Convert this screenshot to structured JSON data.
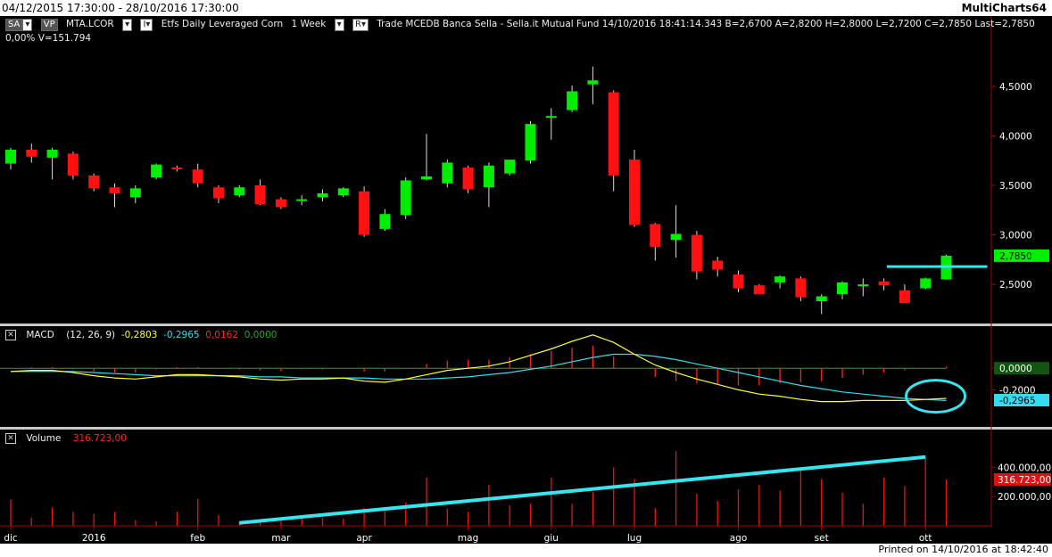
{
  "window": {
    "range_title": "04/12/2015 17:30:00 - 28/10/2016 17:30:00",
    "app_name": "MultiCharts64",
    "printed_on": "Printed on 14/10/2016 at 18:42:40"
  },
  "toolbar": {
    "sa_label": "SA",
    "vp_label": "VP",
    "symbol": "MTA.LCOR",
    "dropdown_glyph": "▾",
    "interval_glyph": "I▾",
    "description": "Etfs Daily Leveraged Corn",
    "interval": "1 Week",
    "r_glyph": "R▾",
    "quote_info": "Trade  MCEDB  Banca Sella - Sella.it  Mutual Fund  14/10/2016  18:41:14.343  B=2,6700  A=2,8200  H=2,8000  L=2,7200  C=2,7850  Last=2,7850",
    "change_volume": "0,00%  V=151.794"
  },
  "macd_panel": {
    "label": "MACD",
    "params": "(12, 26, 9)",
    "macd_value": "-0,2803",
    "signal_value": "-0,2965",
    "hist_value": "0,0162",
    "zero_value": "0,0000",
    "axis_ticks": [
      "0,0000",
      "-0,2000"
    ],
    "last_badge": "-0,2965",
    "colors": {
      "macd": "#ffff33",
      "signal": "#33ddee",
      "hist": "#ff2222",
      "zero": "#22aa22"
    }
  },
  "volume_panel": {
    "label": "Volume",
    "value": "316.723,00",
    "axis_ticks": [
      "400.000,00",
      "200.000,00"
    ],
    "last_badge": "316.723,00"
  },
  "price_panel": {
    "axis_ticks": [
      "4,5000",
      "4,0000",
      "3,5000",
      "3,0000",
      "2,5000"
    ],
    "last_badge": "2,7850"
  },
  "x_axis": {
    "labels": [
      "dic",
      "2016",
      "feb",
      "mar",
      "apr",
      "mag",
      "giu",
      "lug",
      "ago",
      "set",
      "ott"
    ]
  },
  "colors": {
    "background": "#000000",
    "up": "#00ee00",
    "down": "#ff1111",
    "annotation": "#33e6f0",
    "axis_text": "#ffffff"
  },
  "chart_data": [
    {
      "type": "candlestick",
      "title": "MTA.LCOR Etfs Daily Leveraged Corn 1 Week",
      "ylim": [
        2.15,
        4.85
      ],
      "series": [
        {
          "name": "MTA.LCOR",
          "ohlc": [
            [
              3.72,
              3.88,
              3.66,
              3.86
            ],
            [
              3.86,
              3.92,
              3.73,
              3.79
            ],
            [
              3.78,
              3.88,
              3.56,
              3.86
            ],
            [
              3.82,
              3.84,
              3.56,
              3.6
            ],
            [
              3.6,
              3.62,
              3.44,
              3.47
            ],
            [
              3.48,
              3.52,
              3.28,
              3.42
            ],
            [
              3.38,
              3.5,
              3.32,
              3.47
            ],
            [
              3.58,
              3.72,
              3.56,
              3.71
            ],
            [
              3.68,
              3.7,
              3.64,
              3.67
            ],
            [
              3.66,
              3.72,
              3.48,
              3.52
            ],
            [
              3.48,
              3.5,
              3.32,
              3.37
            ],
            [
              3.4,
              3.5,
              3.38,
              3.48
            ],
            [
              3.5,
              3.56,
              3.3,
              3.31
            ],
            [
              3.36,
              3.38,
              3.26,
              3.28
            ],
            [
              3.35,
              3.4,
              3.3,
              3.36
            ],
            [
              3.38,
              3.46,
              3.34,
              3.42
            ],
            [
              3.4,
              3.48,
              3.38,
              3.47
            ],
            [
              3.44,
              3.49,
              2.98,
              3.0
            ],
            [
              3.06,
              3.26,
              3.04,
              3.21
            ],
            [
              3.2,
              3.58,
              3.16,
              3.55
            ],
            [
              3.56,
              4.02,
              3.55,
              3.59
            ],
            [
              3.52,
              3.76,
              3.48,
              3.73
            ],
            [
              3.68,
              3.7,
              3.42,
              3.46
            ],
            [
              3.48,
              3.73,
              3.28,
              3.7
            ],
            [
              3.62,
              3.74,
              3.6,
              3.76
            ],
            [
              3.75,
              4.15,
              3.72,
              4.12
            ],
            [
              4.19,
              4.28,
              3.96,
              4.2
            ],
            [
              4.26,
              4.51,
              4.24,
              4.45
            ],
            [
              4.52,
              4.7,
              4.32,
              4.56
            ],
            [
              4.44,
              4.46,
              3.44,
              3.6
            ],
            [
              3.76,
              3.86,
              3.08,
              3.1
            ],
            [
              3.11,
              3.12,
              2.74,
              2.88
            ],
            [
              2.95,
              3.3,
              2.77,
              3.01
            ],
            [
              3.0,
              3.04,
              2.55,
              2.63
            ],
            [
              2.74,
              2.78,
              2.58,
              2.65
            ],
            [
              2.6,
              2.64,
              2.42,
              2.46
            ],
            [
              2.49,
              2.5,
              2.4,
              2.4
            ],
            [
              2.52,
              2.59,
              2.46,
              2.58
            ],
            [
              2.56,
              2.58,
              2.33,
              2.37
            ],
            [
              2.33,
              2.4,
              2.2,
              2.38
            ],
            [
              2.4,
              2.53,
              2.35,
              2.52
            ],
            [
              2.5,
              2.56,
              2.38,
              2.5
            ],
            [
              2.53,
              2.56,
              2.44,
              2.49
            ],
            [
              2.44,
              2.5,
              2.32,
              2.31
            ],
            [
              2.46,
              2.57,
              2.45,
              2.56
            ],
            [
              2.55,
              2.8,
              2.55,
              2.79
            ]
          ]
        }
      ],
      "annotations": [
        {
          "type": "horizontal",
          "y": 2.68
        }
      ]
    },
    {
      "type": "line",
      "title": "MACD (12, 26, 9)",
      "ylim": [
        -0.52,
        0.25
      ],
      "series": [
        {
          "name": "MACD",
          "values": [
            -0.03,
            -0.02,
            -0.02,
            -0.04,
            -0.07,
            -0.09,
            -0.1,
            -0.08,
            -0.06,
            -0.06,
            -0.07,
            -0.08,
            -0.1,
            -0.11,
            -0.1,
            -0.1,
            -0.09,
            -0.12,
            -0.13,
            -0.1,
            -0.06,
            -0.02,
            0.0,
            0.02,
            0.06,
            0.12,
            0.18,
            0.25,
            0.31,
            0.24,
            0.13,
            0.03,
            -0.04,
            -0.1,
            -0.15,
            -0.2,
            -0.24,
            -0.26,
            -0.29,
            -0.31,
            -0.31,
            -0.3,
            -0.3,
            -0.3,
            -0.29,
            -0.28
          ]
        },
        {
          "name": "Signal",
          "values": [
            -0.03,
            -0.03,
            -0.03,
            -0.03,
            -0.04,
            -0.05,
            -0.06,
            -0.07,
            -0.07,
            -0.07,
            -0.07,
            -0.07,
            -0.08,
            -0.08,
            -0.09,
            -0.09,
            -0.09,
            -0.09,
            -0.1,
            -0.1,
            -0.1,
            -0.09,
            -0.08,
            -0.06,
            -0.04,
            -0.01,
            0.02,
            0.06,
            0.1,
            0.13,
            0.13,
            0.11,
            0.08,
            0.04,
            0.0,
            -0.04,
            -0.08,
            -0.12,
            -0.16,
            -0.19,
            -0.22,
            -0.24,
            -0.26,
            -0.28,
            -0.29,
            -0.3
          ]
        },
        {
          "name": "Histogram",
          "values": [
            0.0,
            0.01,
            0.01,
            -0.01,
            -0.03,
            -0.04,
            -0.04,
            -0.01,
            0.01,
            0.01,
            0.0,
            -0.01,
            -0.02,
            -0.03,
            -0.01,
            -0.01,
            0.0,
            -0.03,
            -0.03,
            0.0,
            0.04,
            0.07,
            0.08,
            0.08,
            0.1,
            0.13,
            0.16,
            0.19,
            0.21,
            0.11,
            0.0,
            -0.08,
            -0.12,
            -0.14,
            -0.15,
            -0.16,
            -0.16,
            -0.14,
            -0.13,
            -0.12,
            -0.09,
            -0.06,
            -0.04,
            -0.02,
            0.0,
            0.0162
          ]
        }
      ]
    },
    {
      "type": "bar",
      "title": "Volume",
      "ylim": [
        0,
        560000
      ],
      "series": [
        {
          "name": "Volume",
          "values": [
            180000,
            55000,
            125000,
            95000,
            80000,
            95000,
            40000,
            30000,
            95000,
            185000,
            75000,
            30000,
            45000,
            35000,
            60000,
            55000,
            50000,
            120000,
            100000,
            160000,
            330000,
            120000,
            95000,
            280000,
            140000,
            150000,
            330000,
            150000,
            230000,
            400000,
            320000,
            120000,
            510000,
            220000,
            170000,
            250000,
            280000,
            240000,
            400000,
            320000,
            225000,
            150000,
            330000,
            270000,
            460000,
            316723
          ]
        }
      ],
      "annotations": [
        {
          "type": "trendline",
          "from": [
            11,
            20000
          ],
          "to": [
            44,
            470000
          ]
        }
      ]
    }
  ]
}
